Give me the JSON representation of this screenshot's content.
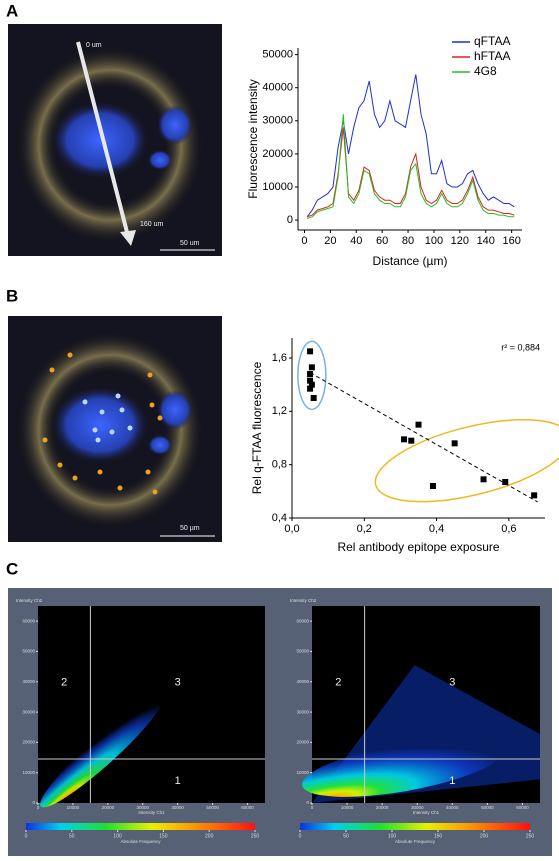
{
  "panel_labels": [
    "A",
    "B",
    "C"
  ],
  "images": [
    {
      "labels": [
        "0 um",
        "160 um",
        "50 um"
      ]
    },
    {
      "labels": [
        "50 µm"
      ]
    }
  ],
  "chart_data": [
    {
      "type": "line",
      "xlabel": "Distance (µm)",
      "ylabel": "Fluorescence intensity",
      "x": [
        2,
        6,
        10,
        14,
        18,
        22,
        26,
        30,
        34,
        38,
        42,
        46,
        50,
        54,
        58,
        62,
        66,
        70,
        74,
        78,
        82,
        86,
        90,
        94,
        98,
        102,
        106,
        110,
        114,
        118,
        122,
        126,
        130,
        134,
        138,
        142,
        146,
        150,
        154,
        158,
        162
      ],
      "series": [
        {
          "name": "qFTAA",
          "color": "#1f2fd0",
          "values": [
            1000,
            3000,
            6000,
            7000,
            8000,
            10000,
            22000,
            30000,
            20000,
            28000,
            34000,
            36000,
            42000,
            32000,
            28000,
            30000,
            36000,
            30000,
            29000,
            28000,
            36000,
            44000,
            32000,
            26000,
            14000,
            14000,
            18000,
            11000,
            10000,
            10000,
            11000,
            14000,
            15000,
            11000,
            8000,
            6000,
            7000,
            6000,
            5000,
            5000,
            4000
          ]
        },
        {
          "name": "hFTAA",
          "color": "#e02020",
          "values": [
            1000,
            1500,
            3000,
            3500,
            4000,
            5000,
            14000,
            28000,
            8000,
            6000,
            9000,
            16000,
            15000,
            9000,
            7000,
            6000,
            6000,
            5000,
            5000,
            8000,
            16000,
            20000,
            10000,
            6000,
            5000,
            6000,
            9000,
            6000,
            5000,
            5000,
            6000,
            9000,
            13000,
            7000,
            4000,
            3000,
            3000,
            2500,
            2000,
            2000,
            1500
          ]
        },
        {
          "name": "4G8",
          "color": "#22c022",
          "values": [
            500,
            1000,
            2500,
            3000,
            3500,
            4000,
            13000,
            32000,
            7000,
            5000,
            8000,
            15000,
            14000,
            8000,
            6000,
            5000,
            5000,
            4000,
            4000,
            7000,
            15000,
            17000,
            8000,
            5000,
            4000,
            5000,
            8000,
            5000,
            4000,
            4000,
            5000,
            8000,
            12000,
            6000,
            3000,
            2000,
            2000,
            1500,
            1500,
            1000,
            1000
          ]
        }
      ],
      "xlim": [
        -5,
        168
      ],
      "ylim": [
        -3000,
        52000
      ],
      "xticks": [
        0,
        20,
        40,
        60,
        80,
        100,
        120,
        140,
        160
      ],
      "yticks": [
        0,
        10000,
        20000,
        30000,
        40000,
        50000
      ],
      "legend": "top-right"
    },
    {
      "type": "scatter",
      "xlabel": "Rel antibody epitope exposure",
      "ylabel": "Rel q-FTAA fluorescence",
      "annotation": "r² = 0,884",
      "color": "#000000",
      "x": [
        0.05,
        0.055,
        0.05,
        0.05,
        0.055,
        0.05,
        0.06,
        0.31,
        0.33,
        0.35,
        0.39,
        0.45,
        0.53,
        0.59,
        0.67
      ],
      "values": [
        1.65,
        1.53,
        1.48,
        1.43,
        1.4,
        1.37,
        1.3,
        0.99,
        0.98,
        1.1,
        0.64,
        0.96,
        0.69,
        0.67,
        0.57
      ],
      "trendline": {
        "x": [
          0.05,
          0.68
        ],
        "y": [
          1.49,
          0.52
        ]
      },
      "xlim": [
        0,
        0.7
      ],
      "ylim": [
        0.4,
        1.75
      ],
      "xticks": [
        {
          "value": 0,
          "label": "0,0"
        },
        {
          "value": 0.2,
          "label": "0,2"
        },
        {
          "value": 0.4,
          "label": "0,4"
        },
        {
          "value": 0.6,
          "label": "0,6"
        }
      ],
      "yticks": [
        {
          "value": 0.4,
          "label": "0,4"
        },
        {
          "value": 0.8,
          "label": "0,8"
        },
        {
          "value": 1.2,
          "label": "1,2"
        },
        {
          "value": 1.6,
          "label": "1,6"
        }
      ]
    },
    {
      "type": "density",
      "xlabel": "Intensity Ch1",
      "ylabel": "Intensity Ch2",
      "colorbar_label": "Absolute Frequency",
      "xlim": [
        0,
        65000
      ],
      "ylim": [
        0,
        65000
      ],
      "xticks": [
        0,
        10000,
        20000,
        30000,
        40000,
        50000,
        60000
      ],
      "yticks": [
        0,
        10000,
        20000,
        30000,
        40000,
        50000,
        60000
      ],
      "gate": {
        "x": 15000,
        "y": 14500
      },
      "quadrants": [
        "1",
        "2",
        "3"
      ],
      "colorbar_ticks": [
        0,
        50,
        100,
        150,
        200,
        250
      ]
    },
    {
      "type": "density",
      "xlabel": "Intensity Ch1",
      "ylabel": "Intensity Ch2",
      "colorbar_label": "Absolute Frequency",
      "xlim": [
        0,
        65000
      ],
      "ylim": [
        0,
        65000
      ],
      "xticks": [
        0,
        10000,
        20000,
        30000,
        40000,
        50000,
        60000
      ],
      "yticks": [
        0,
        10000,
        20000,
        30000,
        40000,
        50000,
        60000
      ],
      "gate": {
        "x": 15000,
        "y": 14500
      },
      "quadrants": [
        "1",
        "2",
        "3"
      ],
      "colorbar_ticks": [
        0,
        50,
        100,
        150,
        200,
        250
      ]
    }
  ]
}
